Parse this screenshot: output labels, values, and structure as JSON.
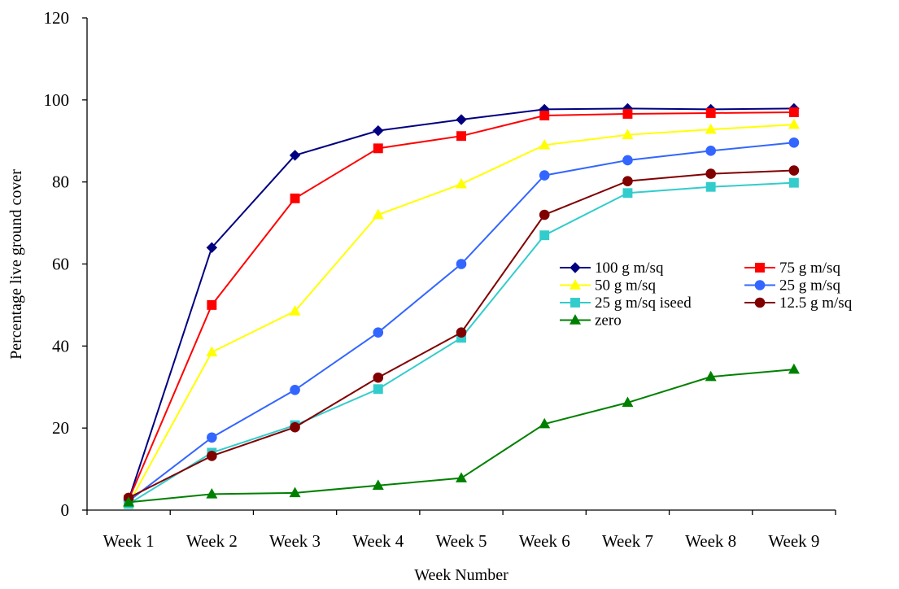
{
  "chart_data": {
    "type": "line",
    "categories": [
      "Week 1",
      "Week 2",
      "Week 3",
      "Week 4",
      "Week 5",
      "Week 6",
      "Week 7",
      "Week 8",
      "Week 9"
    ],
    "xlabel": "Week Number",
    "ylabel": "Percentage live ground cover",
    "ylim": [
      0,
      120
    ],
    "yticks": [
      "0",
      "20",
      "40",
      "60",
      "80",
      "100",
      "120"
    ],
    "grid": false,
    "legend_position": "center-right",
    "series": [
      {
        "name": "100 g m/sq",
        "color": "#000080",
        "marker": "diamond",
        "values": [
          2.5,
          64,
          86.5,
          92.5,
          95.2,
          97.7,
          97.9,
          97.7,
          97.9
        ]
      },
      {
        "name": "75 g m/sq",
        "color": "#ff0000",
        "marker": "square",
        "values": [
          2.5,
          50,
          76,
          88.2,
          91.2,
          96.2,
          96.6,
          96.8,
          97
        ]
      },
      {
        "name": "50 g m/sq",
        "color": "#ffff00",
        "marker": "triangle",
        "values": [
          1.5,
          38.5,
          48.5,
          72,
          79.5,
          89,
          91.5,
          92.8,
          94
        ]
      },
      {
        "name": "25 g m/sq",
        "color": "#3366ff",
        "marker": "circle",
        "values": [
          2.2,
          17.7,
          29.3,
          43.3,
          60,
          81.6,
          85.3,
          87.6,
          89.6
        ]
      },
      {
        "name": "25 g m/sq iseed",
        "color": "#33cccc",
        "marker": "square",
        "values": [
          1.5,
          14,
          20.7,
          29.5,
          42,
          67,
          77.3,
          78.8,
          79.8
        ]
      },
      {
        "name": "12.5 g m/sq",
        "color": "#800000",
        "marker": "circle",
        "values": [
          3,
          13.2,
          20.2,
          32.3,
          43.3,
          72,
          80.2,
          82,
          82.8
        ]
      },
      {
        "name": "zero",
        "color": "#008000",
        "marker": "triangle",
        "values": [
          1.9,
          3.9,
          4.2,
          6,
          7.8,
          21,
          26.2,
          32.5,
          34.3
        ]
      }
    ]
  }
}
